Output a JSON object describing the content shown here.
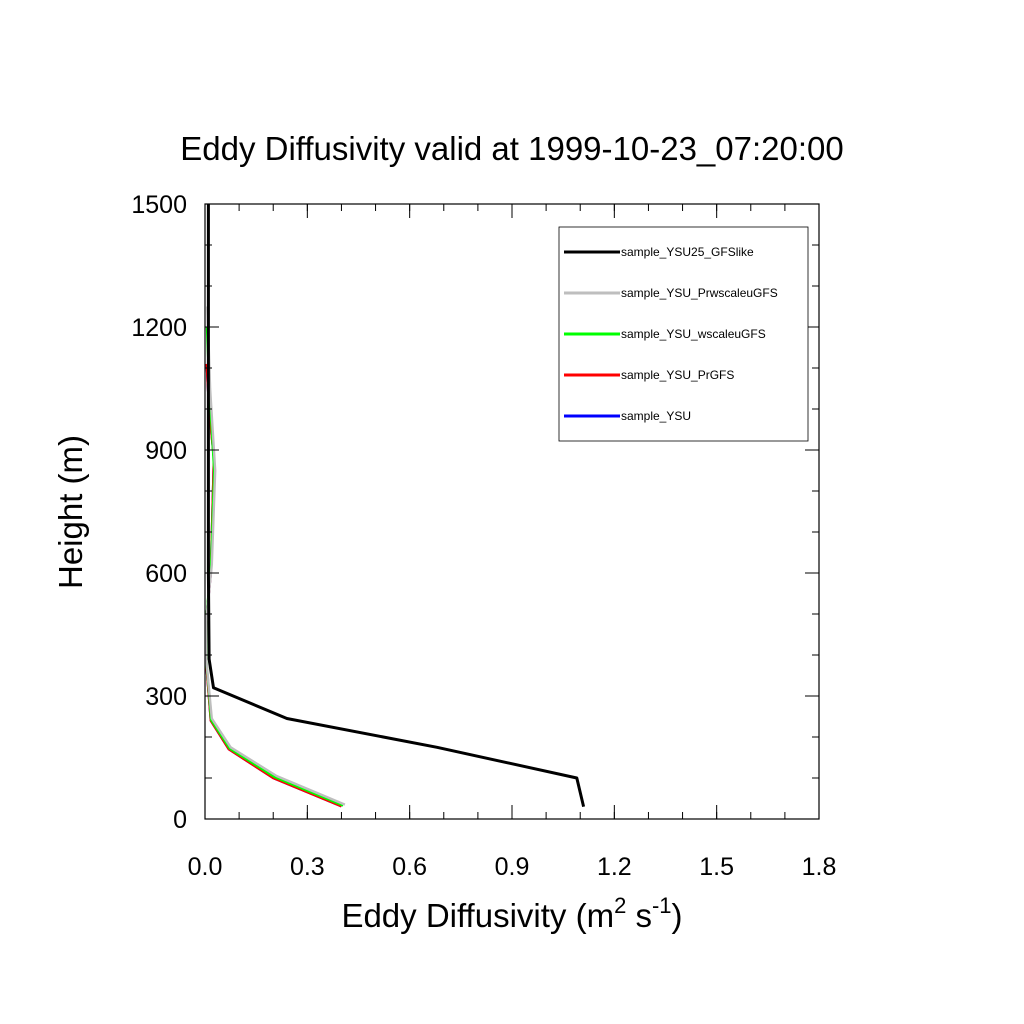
{
  "chart_data": {
    "type": "line",
    "title": "Eddy Diffusivity valid at 1999-10-23_07:20:00",
    "xlabel": {
      "base": "Eddy Diffusivity (m",
      "sup1": "2",
      "mid": " s",
      "sup2": "-1",
      "end": ")"
    },
    "ylabel": "Height (m)",
    "xlim": [
      0,
      1.8
    ],
    "ylim": [
      0,
      1500
    ],
    "x_ticks": [
      0.0,
      0.3,
      0.6,
      0.9,
      1.2,
      1.5,
      1.8
    ],
    "x_tick_labels": [
      "0.0",
      "0.3",
      "0.6",
      "0.9",
      "1.2",
      "1.5",
      "1.8"
    ],
    "y_ticks": [
      0,
      300,
      600,
      900,
      1200,
      1500
    ],
    "y_tick_labels": [
      "0",
      "300",
      "600",
      "900",
      "1200",
      "1500"
    ],
    "x_minor_step": 0.1,
    "y_minor_step": 100,
    "grid": false,
    "legend_position": "top-right",
    "series": [
      {
        "name": "sample_YSU25_GFSlike",
        "color": "#000000",
        "x": [
          1.11,
          1.09,
          0.68,
          0.24,
          0.025,
          0.012,
          0.01,
          0.01,
          0.01,
          0.01,
          0.01
        ],
        "y": [
          30,
          100,
          175,
          245,
          320,
          390,
          600,
          900,
          1200,
          1400,
          1500
        ]
      },
      {
        "name": "sample_YSU_PrwscaleuGFS",
        "color": "#bebebe",
        "x": [
          0.41,
          0.21,
          0.075,
          0.02,
          0.012,
          0.003,
          0.003,
          0.02,
          0.03,
          0.015,
          0.007
        ],
        "y": [
          35,
          105,
          175,
          245,
          315,
          395,
          480,
          620,
          850,
          1050,
          1250
        ]
      },
      {
        "name": "sample_YSU_wscaleuGFS",
        "color": "#00ff00",
        "x": [
          0.405,
          0.205,
          0.072,
          0.018,
          0.011,
          0.003,
          0.003,
          0.018,
          0.027,
          0.013,
          0.006
        ],
        "y": [
          33,
          102,
          172,
          242,
          315,
          395,
          480,
          620,
          850,
          1050,
          1200
        ]
      },
      {
        "name": "sample_YSU_PrGFS",
        "color": "#ff0000",
        "x": [
          0.4,
          0.2,
          0.07,
          0.017,
          0.01,
          0.002,
          0.003,
          0.017,
          0.026,
          0.012,
          0.005
        ],
        "y": [
          31,
          100,
          170,
          240,
          315,
          395,
          480,
          600,
          880,
          1000,
          1110
        ]
      },
      {
        "name": "sample_YSU",
        "color": "#0000ff",
        "x": [
          0.4,
          0.2,
          0.07,
          0.017,
          0.01,
          0.002,
          0.003,
          0.017,
          0.026,
          0.012,
          0.005
        ],
        "y": [
          31,
          100,
          170,
          240,
          315,
          395,
          480,
          600,
          880,
          1000,
          1110
        ]
      }
    ]
  }
}
